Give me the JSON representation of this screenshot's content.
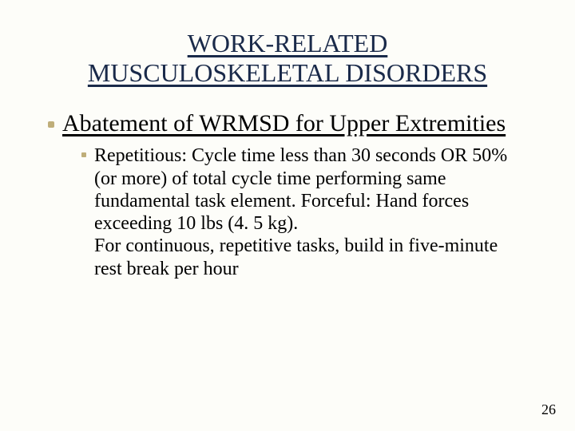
{
  "slide": {
    "background_color": "#fdfdf9",
    "title": {
      "line1": "WORK-RELATED",
      "line2": "MUSCULOSKELETAL DISORDERS",
      "color": "#1a2a4a",
      "fontsize": 32,
      "underline": true
    },
    "subtitle": {
      "text": "Abatement of WRMSD for Upper Extremities",
      "color": "#000000",
      "fontsize": 30,
      "underline": true,
      "bullet_color": "#bfae7a"
    },
    "body": {
      "text": "Repetitious: Cycle time less than 30 seconds OR 50% (or more) of total cycle time performing same fundamental task element. Forceful: Hand forces exceeding 10 lbs (4. 5 kg).\nFor continuous, repetitive tasks, build in five-minute rest break per hour",
      "color": "#000000",
      "fontsize": 24,
      "bullet_color": "#bfae7a"
    },
    "page_number": "26"
  }
}
